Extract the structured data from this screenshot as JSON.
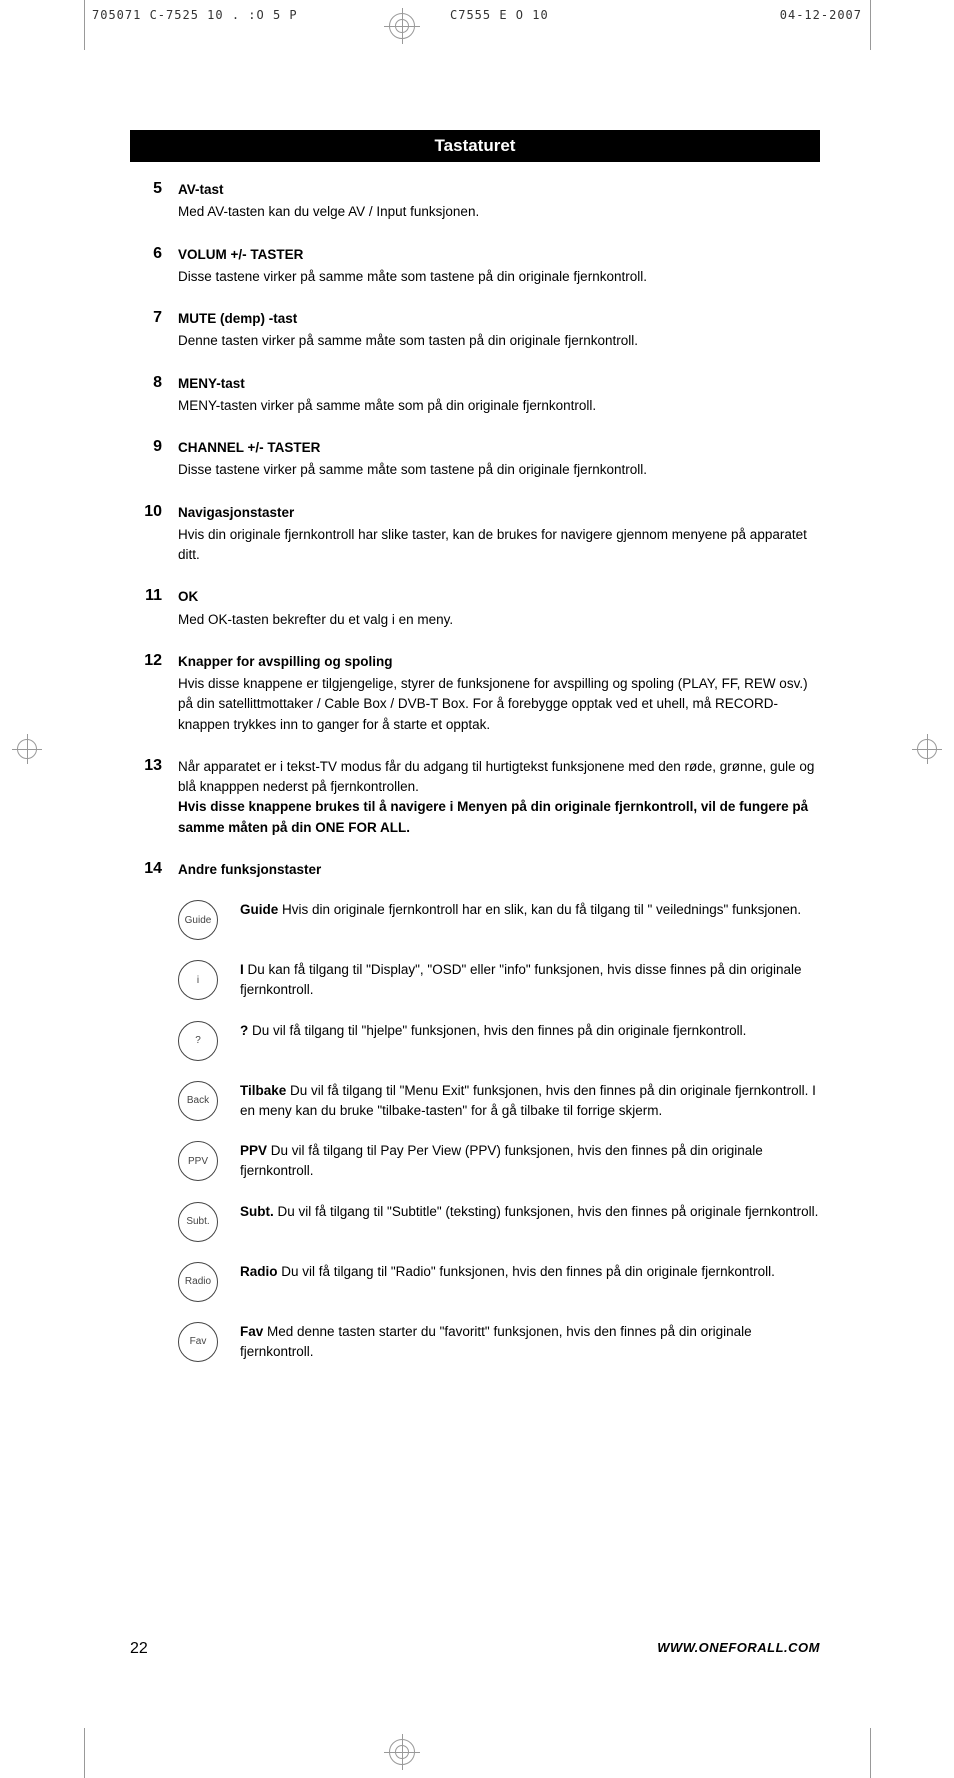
{
  "header": {
    "left": "705071  C-7525  10 .  :O  5 P",
    "mid": "C7555 E  O 10",
    "right": "04-12-2007"
  },
  "title": "Tastaturet",
  "items": [
    {
      "num": "5",
      "heading": "AV-tast",
      "body": "Med AV-tasten kan du velge AV / Input funksjonen."
    },
    {
      "num": "6",
      "heading": "VOLUM +/- TASTER",
      "body": "Disse tastene virker på samme måte som tastene på din originale fjernkontroll."
    },
    {
      "num": "7",
      "heading": "MUTE (demp) -tast",
      "body": "Denne tasten virker på samme måte som tasten på din originale fjernkontroll."
    },
    {
      "num": "8",
      "heading": "MENY-tast",
      "body": "MENY-tasten virker på samme måte som på din originale fjernkontroll."
    },
    {
      "num": "9",
      "heading": "CHANNEL +/- TASTER",
      "body": "Disse tastene virker på samme måte som tastene på din originale fjernkontroll."
    },
    {
      "num": "10",
      "heading": "Navigasjonstaster",
      "body": "Hvis din originale fjernkontroll har slike taster, kan de brukes for navigere gjennom menyene på apparatet ditt."
    },
    {
      "num": "11",
      "heading": "OK",
      "body": "Med OK-tasten bekrefter du et valg i en meny."
    },
    {
      "num": "12",
      "heading": "Knapper for avspilling og spoling",
      "body": "Hvis disse knappene er tilgjengelige, styrer de funksjonene for avspilling og spoling (PLAY, FF, REW osv.) på din satellittmottaker / Cable Box / DVB-T Box. For å forebygge opptak ved et uhell, må RECORD-knappen trykkes inn to ganger for å starte et opptak."
    }
  ],
  "item13": {
    "num": "13",
    "p1": "Når apparatet er i tekst-TV modus får du adgang til hurtigtekst funksjonene med den røde, grønne, gule og blå knapppen nederst på fjernkontrollen.",
    "p2": "Hvis disse knappene brukes til å navigere i Menyen på din originale fjernkontroll, vil de fungere på samme måten på din ONE FOR ALL."
  },
  "item14": {
    "num": "14",
    "heading": "Andre funksjonstaster",
    "rows": [
      {
        "icon": "Guide",
        "bold": "Guide",
        "text": " Hvis din originale fjernkontroll har en slik, kan du få tilgang til \" veilednings\" funksjonen."
      },
      {
        "icon": "i",
        "bold": "I",
        "text": " Du kan få tilgang til \"Display\", \"OSD\" eller \"info\" funksjonen, hvis disse finnes på din originale fjernkontroll."
      },
      {
        "icon": "?",
        "bold": "?",
        "text": " Du vil få tilgang til \"hjelpe\" funksjonen, hvis den finnes på din originale fjernkontroll."
      },
      {
        "icon": "Back",
        "bold": "Tilbake",
        "text": " Du vil få tilgang til \"Menu Exit\" funksjonen, hvis den finnes på din originale fjernkontroll. I en meny kan du bruke \"tilbake-tasten\" for å gå tilbake til forrige skjerm."
      },
      {
        "icon": "PPV",
        "bold": "PPV",
        "text": " Du vil få tilgang til Pay Per View (PPV) funksjonen, hvis den finnes på din originale fjernkontroll."
      },
      {
        "icon": "Subt.",
        "bold": "Subt.",
        "text": " Du vil få tilgang til \"Subtitle\" (teksting) funksjonen, hvis den finnes på originale fjernkontroll."
      },
      {
        "icon": "Radio",
        "bold": "Radio",
        "text": " Du vil få tilgang til \"Radio\" funksjonen, hvis den finnes på din originale fjernkontroll."
      },
      {
        "icon": "Fav",
        "bold": "Fav",
        "text": " Med denne tasten starter du \"favoritt\" funksjonen, hvis den finnes på din originale fjernkontroll."
      }
    ]
  },
  "footer": {
    "page": "22",
    "url": "WWW.ONEFORALL.COM"
  },
  "colors": {
    "title_bg": "#000000",
    "title_fg": "#ffffff",
    "icon_border": "#444444",
    "crop": "#999999"
  }
}
